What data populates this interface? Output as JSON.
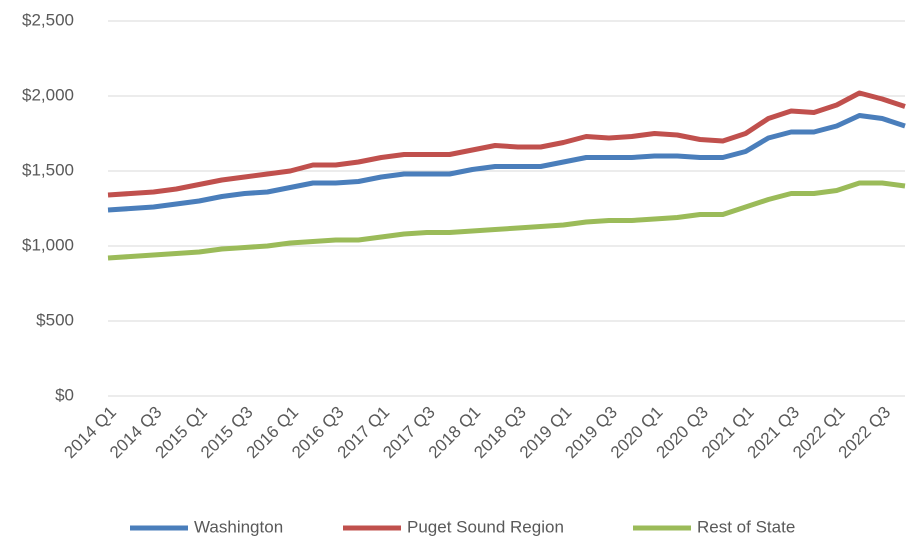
{
  "chart_data": {
    "type": "line",
    "categories": [
      "2014 Q1",
      null,
      "2014 Q3",
      null,
      "2015 Q1",
      null,
      "2015 Q3",
      null,
      "2016 Q1",
      null,
      "2016 Q3",
      null,
      "2017 Q1",
      null,
      "2017 Q3",
      null,
      "2018 Q1",
      null,
      "2018 Q3",
      null,
      "2019 Q1",
      null,
      "2019 Q3",
      null,
      "2020 Q1",
      null,
      "2020 Q3",
      null,
      "2021 Q1",
      null,
      "2021 Q3",
      null,
      "2022 Q1",
      null,
      "2022 Q3",
      null
    ],
    "series": [
      {
        "name": "Washington",
        "color": "#4a7ebb",
        "values": [
          1240,
          1250,
          1260,
          1280,
          1300,
          1330,
          1350,
          1360,
          1390,
          1420,
          1420,
          1430,
          1460,
          1480,
          1480,
          1480,
          1510,
          1530,
          1530,
          1530,
          1560,
          1590,
          1590,
          1590,
          1600,
          1600,
          1590,
          1590,
          1630,
          1720,
          1760,
          1760,
          1800,
          1870,
          1850,
          1800
        ]
      },
      {
        "name": "Puget Sound Region",
        "color": "#c0504d",
        "values": [
          1340,
          1350,
          1360,
          1380,
          1410,
          1440,
          1460,
          1480,
          1500,
          1540,
          1540,
          1560,
          1590,
          1610,
          1610,
          1610,
          1640,
          1670,
          1660,
          1660,
          1690,
          1730,
          1720,
          1730,
          1750,
          1740,
          1710,
          1700,
          1750,
          1850,
          1900,
          1890,
          1940,
          2020,
          1980,
          1930
        ]
      },
      {
        "name": "Rest of State",
        "color": "#9bbb59",
        "values": [
          920,
          930,
          940,
          950,
          960,
          980,
          990,
          1000,
          1020,
          1030,
          1040,
          1040,
          1060,
          1080,
          1090,
          1090,
          1100,
          1110,
          1120,
          1130,
          1140,
          1160,
          1170,
          1170,
          1180,
          1190,
          1210,
          1210,
          1260,
          1310,
          1350,
          1350,
          1370,
          1420,
          1420,
          1400
        ]
      }
    ],
    "ylim": [
      0,
      2500
    ],
    "yticks": [
      {
        "value": 0,
        "label": "$0"
      },
      {
        "value": 500,
        "label": "$500"
      },
      {
        "value": 1000,
        "label": "$1,000"
      },
      {
        "value": 1500,
        "label": "$1,500"
      },
      {
        "value": 2000,
        "label": "$2,000"
      },
      {
        "value": 2500,
        "label": "$2,500"
      }
    ],
    "grid": true
  }
}
